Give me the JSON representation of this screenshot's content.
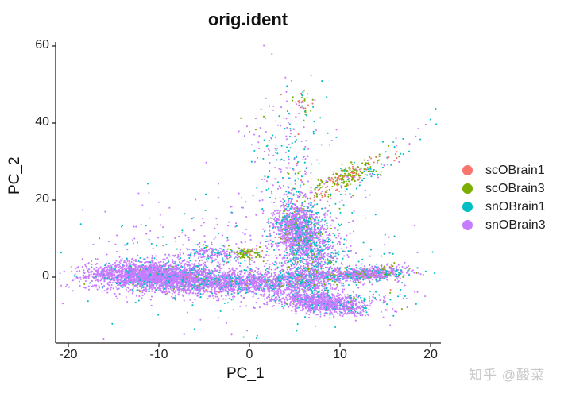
{
  "chart_data": {
    "type": "scatter",
    "title": "orig.ident",
    "xlabel": "PC_1",
    "ylabel": "PC_2",
    "xlim": [
      -21.4,
      21.2
    ],
    "ylim": [
      -17,
      61
    ],
    "x_ticks": [
      -20,
      -10,
      0,
      10,
      20
    ],
    "y_ticks": [
      0,
      20,
      40,
      60
    ],
    "x_tick_labels": [
      "-20",
      "-10",
      "0",
      "10",
      "20"
    ],
    "y_tick_labels": [
      "0",
      "20",
      "40",
      "60"
    ],
    "grid": false,
    "legend_position": "right",
    "series": [
      {
        "name": "scOBrain1",
        "color": "#F8766D"
      },
      {
        "name": "scOBrain3",
        "color": "#7CAE00"
      },
      {
        "name": "snOBrain1",
        "color": "#00BFC4"
      },
      {
        "name": "snOBrain3",
        "color": "#C77CFF"
      }
    ],
    "clusters": [
      {
        "desc": "large left band",
        "cx": -10.5,
        "cy": 0.3,
        "sx": 3.6,
        "sy": 1.8,
        "rot": -2,
        "n": 2600,
        "mix": [
          0,
          0.01,
          0.1,
          0.89
        ]
      },
      {
        "desc": "band extension to center",
        "cx": -2,
        "cy": -1.5,
        "sx": 3.8,
        "sy": 1.6,
        "rot": 2,
        "n": 1200,
        "mix": [
          0.01,
          0.02,
          0.15,
          0.82
        ]
      },
      {
        "desc": "mid band right",
        "cx": 5,
        "cy": -0.8,
        "sx": 2.5,
        "sy": 1.5,
        "rot": 0,
        "n": 500,
        "mix": [
          0.01,
          0.04,
          0.2,
          0.75
        ]
      },
      {
        "desc": "upper central blob",
        "cx": 5.3,
        "cy": 13,
        "sx": 1.3,
        "sy": 3.2,
        "rot": 0,
        "n": 1000,
        "mix": [
          0.01,
          0.03,
          0.18,
          0.78
        ]
      },
      {
        "desc": "vertical column",
        "cx": 6.8,
        "cy": 6,
        "sx": 1.6,
        "sy": 5.5,
        "rot": 0,
        "n": 900,
        "mix": [
          0.02,
          0.07,
          0.3,
          0.61
        ]
      },
      {
        "desc": "lower right elongated",
        "cx": 7.8,
        "cy": -6.5,
        "sx": 2.7,
        "sy": 1.3,
        "rot": -20,
        "n": 1100,
        "mix": [
          0,
          0.01,
          0.1,
          0.89
        ]
      },
      {
        "desc": "right horizontal arm",
        "cx": 12.6,
        "cy": 0.8,
        "sx": 2.6,
        "sy": 0.9,
        "rot": 6,
        "n": 800,
        "mix": [
          0.02,
          0.08,
          0.2,
          0.7
        ]
      },
      {
        "desc": "green diagonal streak",
        "cx": 10.5,
        "cy": 26,
        "sx": 0.9,
        "sy": 3.5,
        "rot": -35,
        "n": 250,
        "mix": [
          0.3,
          0.6,
          0.03,
          0.07
        ]
      },
      {
        "desc": "green top cluster",
        "cx": 5.8,
        "cy": 45,
        "sx": 0.5,
        "sy": 1.5,
        "rot": 0,
        "n": 35,
        "mix": [
          0.25,
          0.6,
          0.05,
          0.1
        ]
      },
      {
        "desc": "green small cluster near origin",
        "cx": -0.3,
        "cy": 6.3,
        "sx": 0.8,
        "sy": 0.8,
        "rot": 0,
        "n": 90,
        "mix": [
          0.15,
          0.8,
          0.02,
          0.03
        ]
      },
      {
        "desc": "left-mid sparse group",
        "cx": -4,
        "cy": 6,
        "sx": 1.8,
        "sy": 1.2,
        "rot": 0,
        "n": 180,
        "mix": [
          0,
          0.02,
          0.2,
          0.78
        ]
      },
      {
        "desc": "sparse upper region",
        "cx": 4,
        "cy": 30,
        "sx": 2.2,
        "sy": 10,
        "rot": 0,
        "n": 260,
        "mix": [
          0.02,
          0.05,
          0.35,
          0.58
        ]
      },
      {
        "desc": "upper-right diagonal cyan",
        "cx": 14,
        "cy": 28,
        "sx": 0.8,
        "sy": 8,
        "rot": -25,
        "n": 70,
        "mix": [
          0.02,
          0.03,
          0.55,
          0.4
        ]
      },
      {
        "desc": "background scatter",
        "cx": 0,
        "cy": 5,
        "sx": 9,
        "sy": 8,
        "rot": 0,
        "n": 500,
        "mix": [
          0.01,
          0.02,
          0.3,
          0.67
        ]
      },
      {
        "desc": "lower right sparse",
        "cx": 13,
        "cy": -6,
        "sx": 2.5,
        "sy": 1.5,
        "rot": 0,
        "n": 70,
        "mix": [
          0.02,
          0.05,
          0.5,
          0.43
        ]
      }
    ]
  },
  "legend": {
    "items": [
      {
        "label": "scOBrain1",
        "color": "#F8766D"
      },
      {
        "label": "scOBrain3",
        "color": "#7CAE00"
      },
      {
        "label": "snOBrain1",
        "color": "#00BFC4"
      },
      {
        "label": "snOBrain3",
        "color": "#C77CFF"
      }
    ]
  },
  "watermark": "知乎 @酸菜"
}
